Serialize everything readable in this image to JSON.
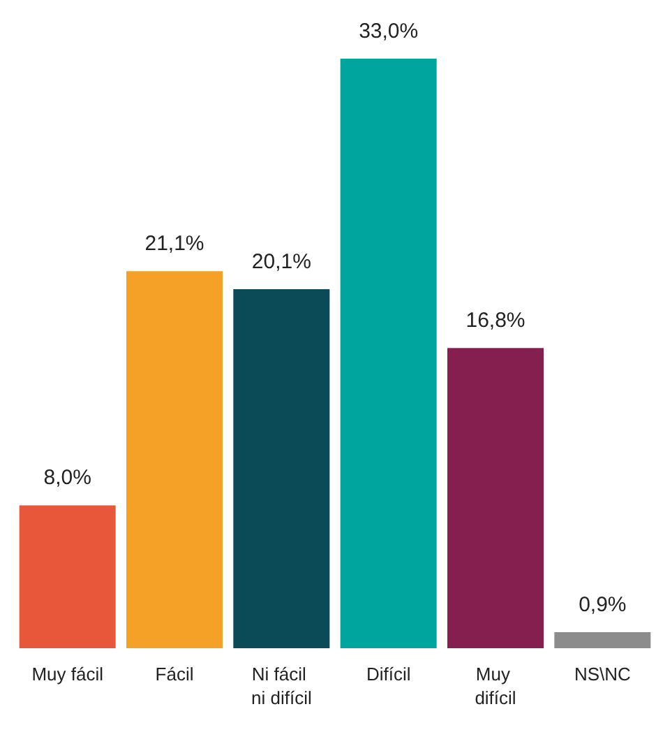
{
  "chart_data": {
    "type": "bar",
    "categories": [
      "Muy fácil",
      "Fácil",
      "Ni fácil ni difícil",
      "Difícil",
      "Muy difícil",
      "NS\\NC"
    ],
    "values": [
      8.0,
      21.1,
      20.1,
      33.0,
      16.8,
      0.9
    ],
    "colors": [
      "#e8573a",
      "#f5a027",
      "#0b4a57",
      "#00a59d",
      "#851f4f",
      "#8c8c8c"
    ],
    "value_labels": [
      "8,0%",
      "21,1%",
      "20,1%",
      "33,0%",
      "16,8%",
      "0,9%"
    ]
  }
}
